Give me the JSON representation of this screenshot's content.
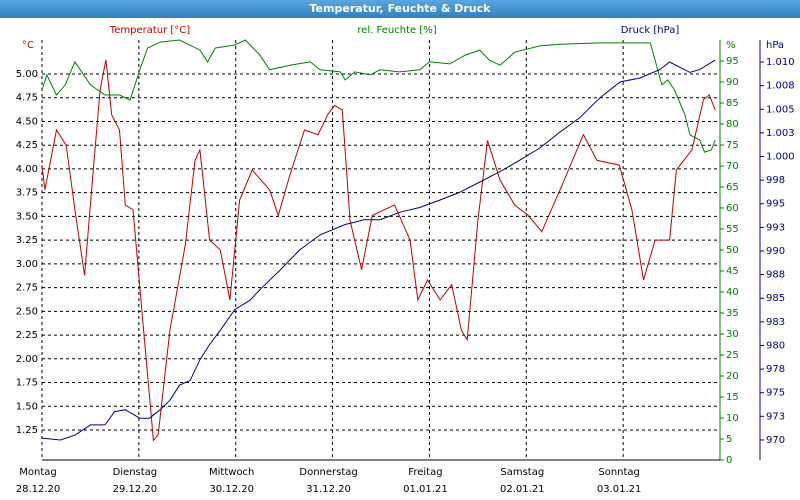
{
  "chart_data": {
    "type": "line",
    "title": "Temperatur, Feuchte & Druck",
    "xlim": [
      0,
      7
    ],
    "xticks": [
      0,
      1,
      2,
      3,
      4,
      5,
      6
    ],
    "xtick_weekdays": [
      "Montag",
      "Dienstag",
      "Mittwoch",
      "Donnerstag",
      "Freitag",
      "Samstag",
      "Sonntag"
    ],
    "xtick_dates": [
      "28.12.20",
      "29.12.20",
      "30.12.20",
      "31.12.20",
      "01.01.21",
      "02.01.21",
      "03.01.21"
    ],
    "grid": true,
    "ylabel": "°C",
    "ylim": [
      0.934,
      5.358
    ],
    "yticks": [
      1.25,
      {
        "value": 1.5,
        "label": "1.50"
      },
      1.75,
      {
        "value": 2.0,
        "label": "2.00"
      },
      2.25,
      {
        "value": 2.5,
        "label": "2.50"
      },
      2.75,
      {
        "value": 3.0,
        "label": "3.00"
      },
      3.25,
      {
        "value": 3.5,
        "label": "3.50"
      },
      3.75,
      {
        "value": 4.0,
        "label": "4.00"
      },
      4.25,
      {
        "value": 4.5,
        "label": "4.50"
      },
      4.75,
      {
        "value": 5.0,
        "label": "5.00"
      }
    ],
    "y2label": "%",
    "y2lim": [
      0,
      100
    ],
    "y2ticks": [
      0,
      5,
      10,
      15,
      20,
      25,
      30,
      35,
      40,
      45,
      50,
      55,
      60,
      65,
      70,
      75,
      80,
      85,
      90,
      95
    ],
    "y3label": "hPa",
    "y3lim": [
      967.88,
      1012.33
    ],
    "y3ticks": [
      970,
      {
        "value": 972.5,
        "label": "973"
      },
      975,
      {
        "value": 977.5,
        "label": "978"
      },
      980,
      {
        "value": 982.5,
        "label": "983"
      },
      985,
      {
        "value": 987.5,
        "label": "988"
      },
      990,
      {
        "value": 992.5,
        "label": "993"
      },
      995,
      {
        "value": 997.5,
        "label": "998"
      },
      {
        "value": 1000,
        "label": "1.000"
      },
      {
        "value": 1002.5,
        "label": "1.003"
      },
      {
        "value": 1005,
        "label": "1.005"
      },
      {
        "value": 1007.5,
        "label": "1.008"
      },
      {
        "value": 1010,
        "label": "1.010"
      }
    ],
    "series": [
      {
        "name": "Temperatur [°C]",
        "color": "#c00000",
        "axis": "y",
        "x": [
          0,
          0.03,
          0.15,
          0.25,
          0.34,
          0.44,
          0.52,
          0.6,
          0.66,
          0.72,
          0.8,
          0.86,
          0.94,
          1.04,
          1.15,
          1.2,
          1.32,
          1.48,
          1.58,
          1.63,
          1.73,
          1.84,
          1.94,
          2.04,
          2.17,
          2.35,
          2.44,
          2.56,
          2.71,
          2.85,
          2.95,
          3.02,
          3.1,
          3.18,
          3.3,
          3.41,
          3.64,
          3.8,
          3.88,
          3.98,
          4.11,
          4.23,
          4.33,
          4.39,
          4.5,
          4.6,
          4.73,
          4.88,
          5.02,
          5.16,
          5.37,
          5.59,
          5.73,
          5.96,
          6.09,
          6.21,
          6.33,
          6.48,
          6.55,
          6.71,
          6.83,
          6.89,
          6.95
        ],
        "values": [
          4.04,
          3.78,
          4.41,
          4.25,
          3.57,
          2.88,
          3.88,
          4.83,
          5.15,
          4.57,
          4.41,
          3.62,
          3.57,
          2.41,
          1.14,
          1.2,
          2.3,
          3.2,
          4.09,
          4.2,
          3.25,
          3.15,
          2.62,
          3.67,
          3.99,
          3.78,
          3.51,
          3.94,
          4.41,
          4.36,
          4.57,
          4.67,
          4.62,
          3.46,
          2.94,
          3.51,
          3.62,
          3.25,
          2.62,
          2.83,
          2.62,
          2.78,
          2.3,
          2.2,
          3.46,
          4.3,
          3.88,
          3.62,
          3.51,
          3.34,
          3.83,
          4.36,
          4.09,
          4.04,
          3.57,
          2.83,
          3.25,
          3.25,
          3.99,
          4.2,
          4.73,
          4.78,
          4.62
        ]
      },
      {
        "name": "rel. Feuchte [%]",
        "color": "#008000",
        "axis": "y2",
        "x": [
          0,
          0.05,
          0.15,
          0.24,
          0.34,
          0.5,
          0.65,
          0.8,
          0.91,
          1.01,
          1.09,
          1.22,
          1.42,
          1.63,
          1.71,
          1.79,
          1.99,
          2.1,
          2.25,
          2.35,
          2.56,
          2.77,
          2.87,
          3.08,
          3.13,
          3.23,
          3.39,
          3.49,
          3.69,
          3.9,
          4.0,
          4.21,
          4.37,
          4.52,
          4.62,
          4.73,
          4.88,
          5.14,
          5.35,
          5.76,
          6.28,
          6.33,
          6.4,
          6.46,
          6.53,
          6.64,
          6.69,
          6.79,
          6.84,
          6.91,
          6.95
        ],
        "values": [
          88.1,
          91.7,
          86.9,
          89.3,
          94.8,
          89.3,
          86.9,
          86.9,
          85.7,
          92.9,
          98.1,
          99.5,
          100,
          97.6,
          94.8,
          98.1,
          98.8,
          100,
          96.4,
          92.9,
          94.0,
          94.8,
          92.9,
          92.4,
          90.5,
          92.4,
          91.7,
          92.9,
          92.4,
          92.9,
          94.8,
          94.3,
          96.4,
          97.6,
          95.2,
          94.0,
          97.1,
          98.6,
          99.0,
          99.3,
          99.3,
          95.2,
          89.3,
          90.5,
          88.1,
          82.1,
          77.4,
          76.2,
          73.3,
          73.8,
          76.2
        ]
      },
      {
        "name": "Druck [hPa]",
        "color": "#00008b",
        "axis": "y3",
        "x": [
          0,
          0.19,
          0.34,
          0.5,
          0.65,
          0.75,
          0.86,
          1.01,
          1.11,
          1.22,
          1.32,
          1.42,
          1.53,
          1.63,
          1.73,
          1.84,
          1.99,
          2.15,
          2.25,
          2.46,
          2.66,
          2.87,
          3.13,
          3.33,
          3.49,
          3.69,
          3.9,
          4.11,
          4.31,
          4.52,
          4.73,
          4.93,
          5.14,
          5.35,
          5.55,
          5.76,
          5.97,
          6.17,
          6.38,
          6.48,
          6.69,
          6.79,
          6.95
        ],
        "values": [
          970.2,
          970.0,
          970.5,
          971.6,
          971.6,
          973.0,
          973.2,
          972.3,
          972.3,
          973.2,
          974.2,
          975.8,
          976.3,
          978.5,
          980.1,
          981.6,
          983.8,
          984.8,
          985.9,
          988.0,
          990.1,
          991.7,
          992.8,
          993.3,
          993.3,
          994.1,
          994.6,
          995.4,
          996.2,
          997.3,
          998.4,
          999.6,
          1000.9,
          1002.6,
          1004.1,
          1006.2,
          1007.9,
          1008.3,
          1009.2,
          1010.0,
          1008.9,
          1009.2,
          1010.2
        ]
      }
    ]
  }
}
